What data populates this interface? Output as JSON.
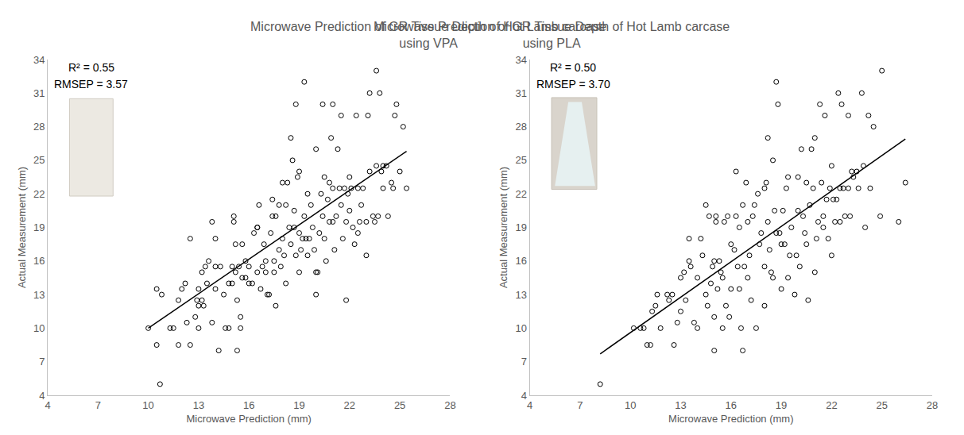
{
  "chart_data": [
    {
      "type": "scatter",
      "title": "Microwave Prediction of GR Tissue Depth of Hot Lamb carcase using VPA",
      "x_label": "Microwave Prediction (mm)",
      "y_label": "Actual Measurement (mm)",
      "annotations": [
        "R² = 0.55",
        "RMSEP = 3.57"
      ],
      "xlim": [
        4,
        28
      ],
      "xticks": [
        4,
        7,
        10,
        13,
        16,
        19,
        22,
        25,
        28
      ],
      "ylim": [
        4,
        34
      ],
      "yticks": [
        4,
        7,
        10,
        13,
        16,
        19,
        22,
        25,
        28,
        31,
        34
      ],
      "grid": false,
      "series": [
        {
          "type": "scatter",
          "marker": "open circle",
          "color": "#000000",
          "x": [
            10,
            10.5,
            10.5,
            10.7,
            10.8,
            11.3,
            11.5,
            11.8,
            11.8,
            12,
            12.2,
            12.3,
            12.5,
            12.5,
            12.8,
            12.9,
            13,
            13,
            13,
            13.2,
            13.2,
            13.3,
            13.4,
            13.5,
            13.6,
            13.8,
            13.8,
            14,
            14,
            14,
            14.2,
            14.3,
            14.5,
            14.6,
            14.8,
            14.8,
            15,
            15,
            15.1,
            15.1,
            15.2,
            15.2,
            15.3,
            15.3,
            15.4,
            15.5,
            15.5,
            15.6,
            15.6,
            15.8,
            15.8,
            16,
            16,
            16.2,
            16.3,
            16.5,
            16.5,
            16.5,
            16.6,
            16.7,
            16.8,
            16.9,
            17,
            17,
            17.1,
            17.2,
            17.3,
            17.4,
            17.4,
            17.5,
            17.5,
            17.6,
            17.6,
            17.8,
            17.8,
            17.9,
            18,
            18,
            18.1,
            18.2,
            18.2,
            18.3,
            18.4,
            18.5,
            18.5,
            18.6,
            18.7,
            18.7,
            18.8,
            18.8,
            18.9,
            19,
            19,
            19,
            19.1,
            19.2,
            19.3,
            19.3,
            19.4,
            19.5,
            19.5,
            19.6,
            19.7,
            19.8,
            19.9,
            20,
            20,
            20,
            20.1,
            20.2,
            20.3,
            20.4,
            20.4,
            20.5,
            20.5,
            20.6,
            20.7,
            20.8,
            20.8,
            20.9,
            21,
            21,
            21,
            21.1,
            21.2,
            21.3,
            21.4,
            21.5,
            21.5,
            21.6,
            21.7,
            21.8,
            21.8,
            21.9,
            22,
            22,
            22.1,
            22.2,
            22.3,
            22.4,
            22.5,
            22.5,
            22.6,
            22.7,
            22.8,
            23,
            23,
            23.1,
            23.2,
            23.2,
            23.4,
            23.5,
            23.6,
            23.6,
            23.7,
            23.8,
            23.9,
            24,
            24,
            24.2,
            24.3,
            24.5,
            24.6,
            24.7,
            24.8,
            25,
            25.2,
            25.4
          ],
          "values": [
            10,
            13.5,
            8.5,
            5,
            13,
            10,
            10,
            8.5,
            12.5,
            13.5,
            14,
            10.5,
            8.5,
            18,
            11,
            12.5,
            10,
            12,
            13.5,
            12.5,
            15,
            12,
            15.5,
            14,
            16,
            10.5,
            19.5,
            15.5,
            13.5,
            18,
            8,
            15.5,
            13,
            10,
            10,
            14,
            15.5,
            14,
            19.5,
            20,
            17.5,
            15,
            8,
            12.5,
            15.5,
            11,
            10,
            14.5,
            17.5,
            14.5,
            16,
            15.5,
            14,
            14,
            18.5,
            15,
            19,
            19,
            21,
            13.5,
            15.5,
            17.5,
            16,
            15,
            13,
            13,
            18.5,
            20,
            21.5,
            16,
            15,
            12,
            20,
            21,
            17,
            15.5,
            23,
            18,
            16.5,
            21,
            14,
            23,
            19,
            17.5,
            27,
            25,
            19,
            20.5,
            16.5,
            30,
            23.5,
            18.5,
            24,
            15,
            17,
            18,
            20,
            32,
            18,
            16.5,
            22,
            18,
            21,
            19,
            17,
            13,
            15,
            26,
            15,
            18.5,
            22,
            20,
            30,
            18,
            23.5,
            16,
            21.5,
            19.5,
            23,
            27,
            30,
            19.5,
            22.5,
            17,
            20,
            26,
            22.5,
            21,
            29,
            18,
            22.5,
            12.5,
            19.5,
            22,
            23.5,
            20.5,
            22.5,
            19,
            17.5,
            29,
            18.5,
            22.5,
            19.5,
            21,
            22.5,
            16.5,
            19.5,
            29,
            31,
            24,
            20,
            19.5,
            33,
            24.5,
            20,
            31,
            24,
            24.5,
            22.5,
            24.5,
            20,
            23,
            22.5,
            29,
            30,
            24,
            28,
            22.5
          ]
        },
        {
          "type": "line",
          "line_style": "solid",
          "color": "#000000",
          "x": [
            10,
            25.4
          ],
          "values": [
            10,
            25.8
          ]
        }
      ]
    },
    {
      "type": "scatter",
      "title": "Microwave Prediction of GR Tissue Depth of Hot Lamb carcase using PLA",
      "x_label": "Microwave Prediction (mm)",
      "y_label": "Actual Measurement (mm)",
      "annotations": [
        "R² = 0.50",
        "RMSEP = 3.70"
      ],
      "xlim": [
        4,
        28
      ],
      "xticks": [
        4,
        7,
        10,
        13,
        16,
        19,
        22,
        25,
        28
      ],
      "ylim": [
        4,
        34
      ],
      "yticks": [
        4,
        7,
        10,
        13,
        16,
        19,
        22,
        25,
        28,
        31,
        34
      ],
      "grid": false,
      "series": [
        {
          "type": "scatter",
          "marker": "open circle",
          "color": "#000000",
          "x": [
            8.2,
            10.2,
            10.6,
            10.8,
            11,
            11.2,
            11.3,
            11.5,
            11.6,
            11.8,
            12.2,
            12.3,
            12.5,
            12.6,
            12.8,
            13,
            13,
            13.2,
            13.3,
            13.5,
            13.5,
            13.6,
            13.8,
            14,
            14,
            14.2,
            14.3,
            14.5,
            14.5,
            14.6,
            14.7,
            14.8,
            14.9,
            15,
            15,
            15,
            15.1,
            15.1,
            15.2,
            15.3,
            15.4,
            15.5,
            15.5,
            15.6,
            15.7,
            15.8,
            15.9,
            16,
            16,
            16.2,
            16.3,
            16.3,
            16.4,
            16.5,
            16.5,
            16.6,
            16.7,
            16.7,
            16.8,
            16.9,
            17,
            17,
            17.1,
            17.2,
            17.3,
            17.4,
            17.5,
            17.6,
            17.7,
            17.8,
            18,
            18,
            18,
            18.1,
            18.2,
            18.2,
            18.3,
            18.4,
            18.5,
            18.5,
            18.6,
            18.7,
            18.7,
            18.8,
            18.9,
            19,
            19,
            19.1,
            19.2,
            19.3,
            19.4,
            19.4,
            19.5,
            19.6,
            19.8,
            19.9,
            20,
            20,
            20.1,
            20.2,
            20.3,
            20.4,
            20.5,
            20.5,
            20.6,
            20.7,
            20.8,
            20.9,
            21,
            21,
            21.1,
            21.2,
            21.3,
            21.4,
            21.5,
            21.5,
            21.6,
            21.7,
            21.8,
            21.9,
            22,
            22,
            22.1,
            22.2,
            22.3,
            22.4,
            22.5,
            22.5,
            22.6,
            22.7,
            22.8,
            23,
            23,
            23.1,
            23.2,
            23.3,
            23.5,
            23.6,
            23.8,
            23.9,
            24,
            24.2,
            24.3,
            24.5,
            24.9,
            25,
            26,
            26.4
          ],
          "values": [
            5,
            10,
            10,
            10,
            8.5,
            8.5,
            11.5,
            12,
            13,
            10,
            13,
            12.5,
            13,
            8.5,
            10.5,
            11.5,
            14.5,
            15,
            12.5,
            16,
            18,
            15.5,
            10.5,
            10,
            14.5,
            18,
            16.5,
            21,
            13,
            12,
            20,
            14,
            15.5,
            16,
            11,
            8,
            19.5,
            20,
            13.5,
            16,
            15,
            14.5,
            10,
            19.5,
            12,
            20,
            11,
            13.5,
            17.5,
            17,
            20,
            24,
            15.5,
            19,
            13.5,
            10,
            8,
            21,
            15.5,
            23,
            19.5,
            14.5,
            16.5,
            12.5,
            20,
            21,
            10,
            22,
            17.5,
            18.5,
            22.5,
            15.5,
            12,
            23,
            27,
            19.5,
            17,
            15,
            25,
            14.5,
            20.5,
            32,
            18.5,
            30,
            18.5,
            13.5,
            17.5,
            20.5,
            17.5,
            22.5,
            14.5,
            23.5,
            16.5,
            19,
            13,
            16.5,
            20.5,
            23.5,
            15.5,
            26,
            20,
            18.5,
            23,
            17.5,
            12.5,
            21,
            26,
            22.5,
            27,
            15,
            18,
            19.5,
            30,
            23,
            19,
            20,
            29,
            21.5,
            18,
            22.5,
            16.5,
            24.5,
            21.5,
            19.5,
            21.5,
            31,
            22.5,
            19.5,
            30,
            22.5,
            20,
            29,
            22.5,
            20,
            24,
            23.5,
            24,
            22.5,
            31,
            24.5,
            19,
            29,
            22.5,
            28,
            20,
            33,
            19.5,
            23
          ]
        },
        {
          "type": "line",
          "line_style": "solid",
          "color": "#000000",
          "x": [
            8.2,
            26.4
          ],
          "values": [
            7.7,
            26.9
          ]
        }
      ]
    }
  ]
}
